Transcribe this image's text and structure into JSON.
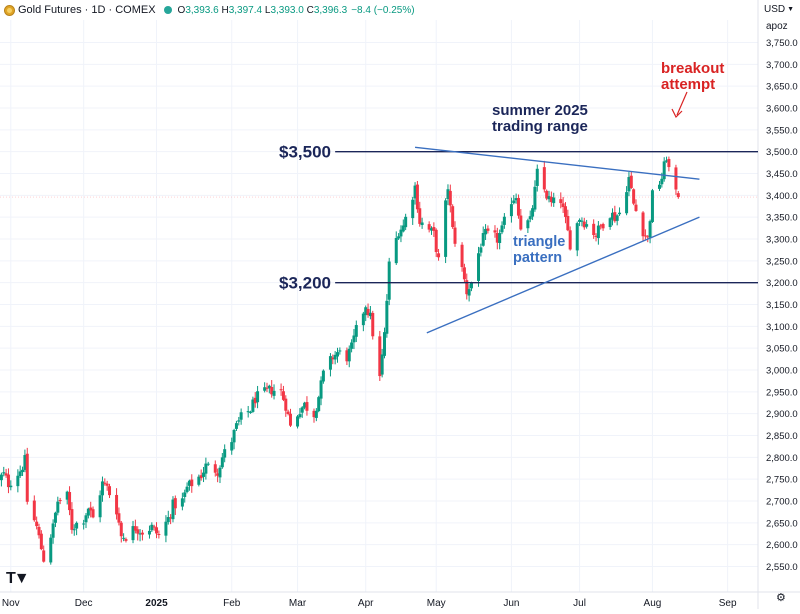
{
  "header": {
    "title": "Gold Futures · 1D · COMEX",
    "open": "3,393.6",
    "high": "3,397.4",
    "low": "3,393.0",
    "close": "3,396.3",
    "change": "−8.4 (−0.25%)",
    "currency": "USD",
    "unit": "apoz"
  },
  "chart_data": {
    "type": "candlestick",
    "y_ticks": [
      2550,
      2600,
      2650,
      2700,
      2750,
      2800,
      2850,
      2900,
      2950,
      3000,
      3050,
      3100,
      3150,
      3200,
      3250,
      3300,
      3350,
      3400,
      3450,
      3500,
      3550,
      3600,
      3650,
      3700,
      3750
    ],
    "y_tick_labels": [
      "2,550.0",
      "2,600.0",
      "2,650.0",
      "2,700.0",
      "2,750.0",
      "2,800.0",
      "2,850.0",
      "2,900.0",
      "2,950.0",
      "3,000.0",
      "3,050.0",
      "3,100.0",
      "3,150.0",
      "3,200.0",
      "3,250.0",
      "3,300.0",
      "3,350.0",
      "3,400.0",
      "3,450.0",
      "3,500.0",
      "3,550.0",
      "3,600.0",
      "3,650.0",
      "3,700.0",
      "3,750.0"
    ],
    "ylim": [
      2535,
      3765
    ],
    "x_labels": [
      "Nov",
      "Dec",
      "2025",
      "Feb",
      "Mar",
      "Apr",
      "May",
      "Jun",
      "Jul",
      "Aug",
      "Sep"
    ],
    "x_label_dates": [
      "2024-11-01",
      "2024-12-02",
      "2025-01-02",
      "2025-02-03",
      "2025-03-03",
      "2025-04-01",
      "2025-05-01",
      "2025-06-02",
      "2025-07-01",
      "2025-08-01",
      "2025-09-02"
    ],
    "x_label_bold": [
      false,
      false,
      true,
      false,
      false,
      false,
      false,
      false,
      false,
      false,
      false
    ],
    "candles": [
      {
        "date": "2024-10-25",
        "close": 2742
      },
      {
        "date": "2024-10-29",
        "close": 2760
      },
      {
        "date": "2024-10-31",
        "close": 2740
      },
      {
        "date": "2024-11-05",
        "close": 2770
      },
      {
        "date": "2024-11-07",
        "close": 2792
      },
      {
        "date": "2024-11-08",
        "close": 2700
      },
      {
        "date": "2024-11-12",
        "close": 2640
      },
      {
        "date": "2024-11-14",
        "close": 2592
      },
      {
        "date": "2024-11-15",
        "close": 2568
      },
      {
        "date": "2024-11-19",
        "close": 2640
      },
      {
        "date": "2024-11-21",
        "close": 2700
      },
      {
        "date": "2024-11-25",
        "close": 2710
      },
      {
        "date": "2024-11-27",
        "close": 2640
      },
      {
        "date": "2024-12-02",
        "close": 2660
      },
      {
        "date": "2024-12-04",
        "close": 2685
      },
      {
        "date": "2024-12-06",
        "close": 2660
      },
      {
        "date": "2024-12-10",
        "close": 2740
      },
      {
        "date": "2024-12-12",
        "close": 2730
      },
      {
        "date": "2024-12-16",
        "close": 2680
      },
      {
        "date": "2024-12-18",
        "close": 2620
      },
      {
        "date": "2024-12-20",
        "close": 2620
      },
      {
        "date": "2024-12-24",
        "close": 2640
      },
      {
        "date": "2024-12-27",
        "close": 2630
      },
      {
        "date": "2024-12-31",
        "close": 2640
      },
      {
        "date": "2025-01-03",
        "close": 2620
      },
      {
        "date": "2025-01-07",
        "close": 2660
      },
      {
        "date": "2025-01-09",
        "close": 2690
      },
      {
        "date": "2025-01-13",
        "close": 2700
      },
      {
        "date": "2025-01-15",
        "close": 2730
      },
      {
        "date": "2025-01-17",
        "close": 2740
      },
      {
        "date": "2025-01-21",
        "close": 2760
      },
      {
        "date": "2025-01-23",
        "close": 2780
      },
      {
        "date": "2025-01-28",
        "close": 2770
      },
      {
        "date": "2025-01-30",
        "close": 2800
      },
      {
        "date": "2025-02-03",
        "close": 2840
      },
      {
        "date": "2025-02-05",
        "close": 2870
      },
      {
        "date": "2025-02-07",
        "close": 2890
      },
      {
        "date": "2025-02-11",
        "close": 2910
      },
      {
        "date": "2025-02-13",
        "close": 2935
      },
      {
        "date": "2025-02-18",
        "close": 2950
      },
      {
        "date": "2025-02-20",
        "close": 2955
      },
      {
        "date": "2025-02-24",
        "close": 2950
      },
      {
        "date": "2025-02-26",
        "close": 2920
      },
      {
        "date": "2025-02-28",
        "close": 2870
      },
      {
        "date": "2025-03-04",
        "close": 2910
      },
      {
        "date": "2025-03-06",
        "close": 2920
      },
      {
        "date": "2025-03-10",
        "close": 2900
      },
      {
        "date": "2025-03-12",
        "close": 2940
      },
      {
        "date": "2025-03-14",
        "close": 2990
      },
      {
        "date": "2025-03-18",
        "close": 3030
      },
      {
        "date": "2025-03-20",
        "close": 3040
      },
      {
        "date": "2025-03-24",
        "close": 3030
      },
      {
        "date": "2025-03-26",
        "close": 3050
      },
      {
        "date": "2025-03-28",
        "close": 3090
      },
      {
        "date": "2025-04-01",
        "close": 3150
      },
      {
        "date": "2025-04-03",
        "close": 3120
      },
      {
        "date": "2025-04-07",
        "close": 2980
      },
      {
        "date": "2025-04-09",
        "close": 3080
      },
      {
        "date": "2025-04-11",
        "close": 3240
      },
      {
        "date": "2025-04-15",
        "close": 3320
      },
      {
        "date": "2025-04-17",
        "close": 3330
      },
      {
        "date": "2025-04-22",
        "close": 3420
      },
      {
        "date": "2025-04-24",
        "close": 3340
      },
      {
        "date": "2025-04-28",
        "close": 3320
      },
      {
        "date": "2025-04-30",
        "close": 3310
      },
      {
        "date": "2025-05-02",
        "close": 3250
      },
      {
        "date": "2025-05-06",
        "close": 3420
      },
      {
        "date": "2025-05-08",
        "close": 3320
      },
      {
        "date": "2025-05-12",
        "close": 3230
      },
      {
        "date": "2025-05-14",
        "close": 3180
      },
      {
        "date": "2025-05-16",
        "close": 3200
      },
      {
        "date": "2025-05-20",
        "close": 3290
      },
      {
        "date": "2025-05-22",
        "close": 3310
      },
      {
        "date": "2025-05-27",
        "close": 3300
      },
      {
        "date": "2025-05-29",
        "close": 3320
      },
      {
        "date": "2025-06-02",
        "close": 3390
      },
      {
        "date": "2025-06-04",
        "close": 3400
      },
      {
        "date": "2025-06-06",
        "close": 3330
      },
      {
        "date": "2025-06-10",
        "close": 3340
      },
      {
        "date": "2025-06-12",
        "close": 3410
      },
      {
        "date": "2025-06-13",
        "close": 3450
      },
      {
        "date": "2025-06-17",
        "close": 3400
      },
      {
        "date": "2025-06-19",
        "close": 3380
      },
      {
        "date": "2025-06-23",
        "close": 3390
      },
      {
        "date": "2025-06-25",
        "close": 3340
      },
      {
        "date": "2025-06-27",
        "close": 3290
      },
      {
        "date": "2025-07-01",
        "close": 3350
      },
      {
        "date": "2025-07-03",
        "close": 3340
      },
      {
        "date": "2025-07-08",
        "close": 3310
      },
      {
        "date": "2025-07-10",
        "close": 3330
      },
      {
        "date": "2025-07-14",
        "close": 3360
      },
      {
        "date": "2025-07-16",
        "close": 3350
      },
      {
        "date": "2025-07-18",
        "close": 3360
      },
      {
        "date": "2025-07-22",
        "close": 3440
      },
      {
        "date": "2025-07-24",
        "close": 3380
      },
      {
        "date": "2025-07-28",
        "close": 3320
      },
      {
        "date": "2025-07-30",
        "close": 3300
      },
      {
        "date": "2025-08-01",
        "close": 3400
      },
      {
        "date": "2025-08-05",
        "close": 3440
      },
      {
        "date": "2025-08-07",
        "close": 3490
      },
      {
        "date": "2025-08-08",
        "close": 3460
      },
      {
        "date": "2025-08-11",
        "close": 3400
      },
      {
        "date": "2025-08-12",
        "close": 3396
      }
    ],
    "hlines": [
      {
        "label": "$3,500",
        "value": 3500,
        "from": "2025-03-19"
      },
      {
        "label": "$3,200",
        "value": 3200,
        "from": "2025-03-19"
      }
    ],
    "trendlines": [
      {
        "name": "upper",
        "from": {
          "date": "2025-04-22",
          "value": 3510
        },
        "to": {
          "date": "2025-08-21",
          "value": 3437
        }
      },
      {
        "name": "lower",
        "from": {
          "date": "2025-04-27",
          "value": 3085
        },
        "to": {
          "date": "2025-08-21",
          "value": 3350
        }
      }
    ],
    "annotations": [
      {
        "name": "summer-range",
        "lines": [
          "summer 2025",
          "trading range"
        ],
        "color": "#1b2659"
      },
      {
        "name": "triangle",
        "lines": [
          "triangle",
          "pattern"
        ],
        "color": "#3a6fc0"
      },
      {
        "name": "breakout",
        "lines": [
          "breakout",
          "attempt"
        ],
        "color": "#d92323"
      }
    ],
    "colors": {
      "up": "#089981",
      "down": "#f23645",
      "grid": "#f0f3fa",
      "hline": "#1b2659",
      "trend": "#3a6fc0",
      "breakout": "#d92323"
    },
    "grid": true
  }
}
